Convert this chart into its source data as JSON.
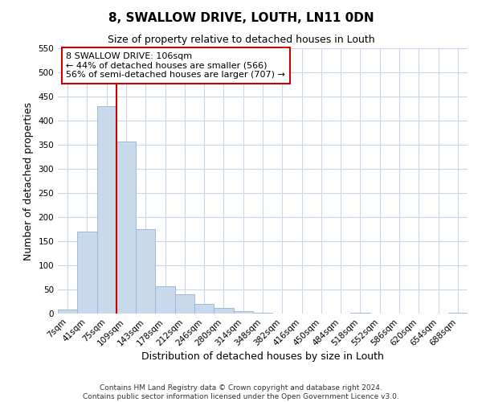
{
  "title": "8, SWALLOW DRIVE, LOUTH, LN11 0DN",
  "subtitle": "Size of property relative to detached houses in Louth",
  "xlabel": "Distribution of detached houses by size in Louth",
  "ylabel": "Number of detached properties",
  "bin_labels": [
    "7sqm",
    "41sqm",
    "75sqm",
    "109sqm",
    "143sqm",
    "178sqm",
    "212sqm",
    "246sqm",
    "280sqm",
    "314sqm",
    "348sqm",
    "382sqm",
    "416sqm",
    "450sqm",
    "484sqm",
    "518sqm",
    "552sqm",
    "586sqm",
    "620sqm",
    "654sqm",
    "688sqm"
  ],
  "bar_values": [
    8,
    170,
    430,
    356,
    175,
    56,
    40,
    20,
    11,
    5,
    1,
    0,
    0,
    0,
    0,
    1,
    0,
    0,
    0,
    0,
    1
  ],
  "bar_color": "#c9d9ec",
  "bar_edge_color": "#a0b8d8",
  "vline_x_idx": 3,
  "vline_color": "#cc0000",
  "ylim": [
    0,
    550
  ],
  "yticks": [
    0,
    50,
    100,
    150,
    200,
    250,
    300,
    350,
    400,
    450,
    500,
    550
  ],
  "annotation_line1": "8 SWALLOW DRIVE: 106sqm",
  "annotation_line2": "← 44% of detached houses are smaller (566)",
  "annotation_line3": "56% of semi-detached houses are larger (707) →",
  "annotation_box_color": "#ffffff",
  "annotation_box_edge_color": "#cc0000",
  "footer_line1": "Contains HM Land Registry data © Crown copyright and database right 2024.",
  "footer_line2": "Contains public sector information licensed under the Open Government Licence v3.0.",
  "bg_color": "#ffffff",
  "grid_color": "#c8d8e8",
  "title_fontsize": 11,
  "subtitle_fontsize": 9,
  "axis_label_fontsize": 9,
  "tick_fontsize": 7.5,
  "annotation_fontsize": 8,
  "footer_fontsize": 6.5
}
